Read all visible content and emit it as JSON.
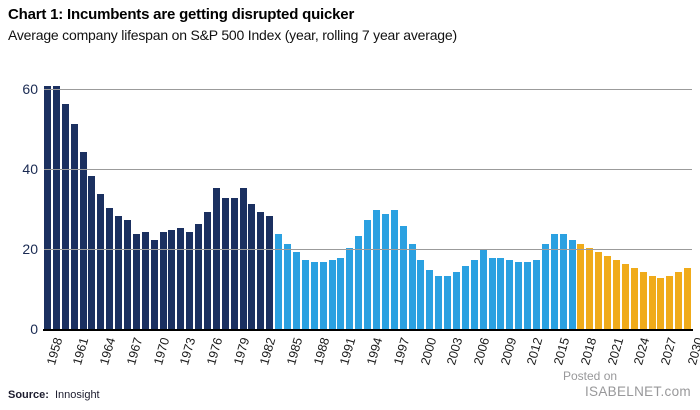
{
  "header": {
    "title": "Chart 1: Incumbents are getting disrupted quicker",
    "subtitle": "Average company lifespan on S&P 500 Index (year, rolling 7 year average)"
  },
  "source": {
    "label": "Source:",
    "value": "Innosight"
  },
  "watermark": {
    "line1": "Posted on",
    "line2": "ISABELNET.com"
  },
  "chart_data": {
    "type": "bar",
    "title": "Chart 1: Incumbents are getting disrupted quicker",
    "subtitle": "Average company lifespan on S&P 500 Index (year, rolling 7 year average)",
    "xlabel": "",
    "ylabel": "",
    "ylim": [
      0,
      61
    ],
    "yticks": [
      0,
      20,
      40,
      60
    ],
    "grid": "horizontal, gray, drawn over bars",
    "legend": "none",
    "x": [
      1958,
      1959,
      1960,
      1961,
      1962,
      1963,
      1964,
      1965,
      1966,
      1967,
      1968,
      1969,
      1970,
      1971,
      1972,
      1973,
      1974,
      1975,
      1976,
      1977,
      1978,
      1979,
      1980,
      1981,
      1982,
      1983,
      1984,
      1985,
      1986,
      1987,
      1988,
      1989,
      1990,
      1991,
      1992,
      1993,
      1994,
      1995,
      1996,
      1997,
      1998,
      1999,
      2000,
      2001,
      2002,
      2003,
      2004,
      2005,
      2006,
      2007,
      2008,
      2009,
      2010,
      2011,
      2012,
      2013,
      2014,
      2015,
      2016,
      2017,
      2018,
      2019,
      2020,
      2021,
      2022,
      2023,
      2024,
      2025,
      2026,
      2027,
      2028,
      2029,
      2030
    ],
    "values": [
      61,
      61,
      56.5,
      51.5,
      44.5,
      38.5,
      34,
      30.5,
      28.5,
      27.5,
      24,
      24.5,
      22.5,
      24.5,
      25,
      25.5,
      24.5,
      26.5,
      29.5,
      35.5,
      33,
      33,
      35.5,
      31.5,
      29.5,
      28.5,
      24,
      21.5,
      19.5,
      17.5,
      17,
      17,
      17.5,
      18,
      20.5,
      23.5,
      27.5,
      30,
      29,
      30,
      26,
      21.5,
      17.5,
      15,
      13.5,
      13.5,
      14.5,
      16,
      17.5,
      20,
      18,
      18,
      17.5,
      17,
      17,
      17.5,
      21.5,
      24,
      24,
      22.5,
      21.5,
      20.5,
      19.5,
      18.5,
      17.5,
      16.5,
      15.5,
      14.5,
      13.5,
      13,
      13.5,
      14.5,
      15.5
    ],
    "segments": [
      {
        "from": 1958,
        "to": 1983,
        "color": "#1B3060",
        "name": "historical-dark-navy"
      },
      {
        "from": 1984,
        "to": 2017,
        "color": "#2BA1E1",
        "name": "historical-light-blue"
      },
      {
        "from": 2018,
        "to": 2030,
        "color": "#F0AB1A",
        "name": "forecast-gold"
      }
    ],
    "xtick_labels": [
      "1958",
      "1961",
      "1964",
      "1967",
      "1970",
      "1973",
      "1976",
      "1979",
      "1982",
      "1985",
      "1988",
      "1991",
      "1994",
      "1997",
      "2000",
      "2003",
      "2006",
      "2009",
      "2012",
      "2015",
      "2018",
      "2021",
      "2024",
      "2027",
      "2030"
    ],
    "xtick_rotation_deg": -74
  },
  "colors": {
    "gridline": "#9b9b9b",
    "axis_line": "#000000",
    "watermark": "#98989a"
  }
}
